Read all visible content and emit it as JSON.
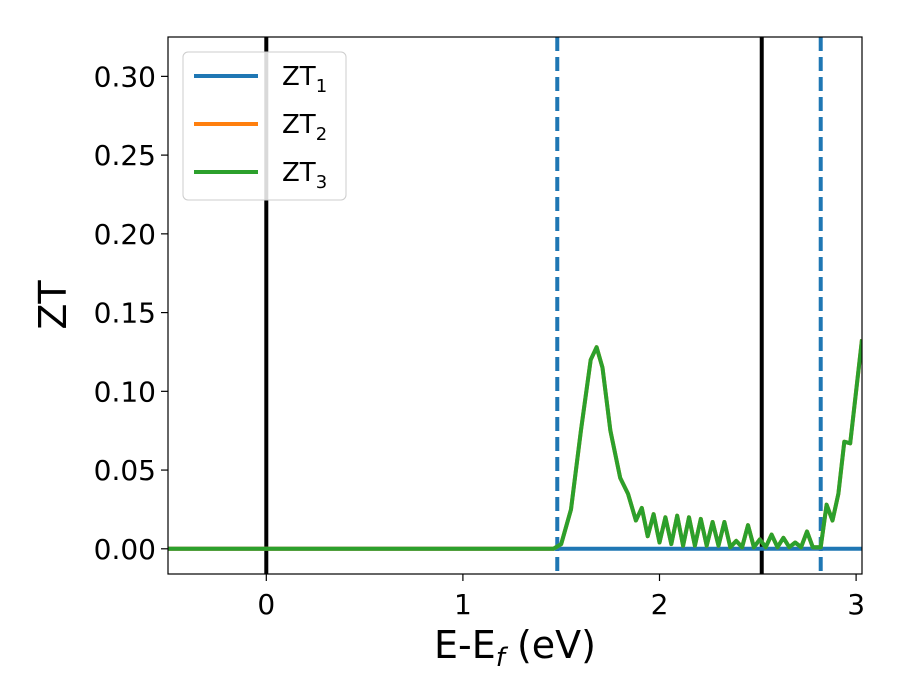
{
  "chart_data": {
    "type": "line",
    "title": "",
    "xlabel": {
      "main": "E-E",
      "sub": "f",
      "unit": " (eV)"
    },
    "ylabel": "ZT",
    "xlim": [
      -0.5,
      3.03
    ],
    "ylim": [
      -0.016,
      0.325
    ],
    "xticks": [
      0,
      1,
      2,
      3
    ],
    "yticks": [
      0.0,
      0.05,
      0.1,
      0.15,
      0.2,
      0.25,
      0.3
    ],
    "grid": false,
    "legend_position": "upper-left",
    "colors": {
      "ZT1": "#1f77b4",
      "ZT2": "#ff7f0e",
      "ZT3": "#2ca02c",
      "vline_solid": "#000000",
      "vline_dashed": "#1f77b4"
    },
    "series": [
      {
        "name": "ZT",
        "sub": "1",
        "color": "#1f77b4",
        "x": [
          -0.5,
          3.03
        ],
        "y": [
          0.0,
          0.0
        ]
      },
      {
        "name": "ZT",
        "sub": "2",
        "color": "#ff7f0e",
        "x": [
          -0.5,
          1.46,
          1.5,
          1.55,
          1.6,
          1.65,
          1.68,
          1.71,
          1.75,
          1.8,
          1.84,
          1.88,
          1.91,
          1.94,
          1.97,
          2.0,
          2.03,
          2.06,
          2.09,
          2.12,
          2.15,
          2.18,
          2.21,
          2.24,
          2.27,
          2.3,
          2.33,
          2.36,
          2.39,
          2.42,
          2.45,
          2.48,
          2.51,
          2.54,
          2.57,
          2.6,
          2.63,
          2.66,
          2.69,
          2.72,
          2.75,
          2.78,
          2.82,
          2.85,
          2.88,
          2.91,
          2.94,
          2.97,
          3.0,
          3.03
        ],
        "y": [
          0.0,
          0.0,
          0.003,
          0.025,
          0.075,
          0.12,
          0.128,
          0.115,
          0.075,
          0.045,
          0.035,
          0.018,
          0.026,
          0.008,
          0.022,
          0.004,
          0.02,
          0.003,
          0.021,
          0.002,
          0.02,
          0.002,
          0.019,
          0.002,
          0.017,
          0.002,
          0.017,
          0.001,
          0.005,
          0.001,
          0.015,
          0.001,
          0.006,
          0.001,
          0.009,
          0.001,
          0.007,
          0.001,
          0.004,
          0.001,
          0.011,
          0.001,
          0.001,
          0.028,
          0.018,
          0.035,
          0.068,
          0.067,
          0.1,
          0.133
        ]
      },
      {
        "name": "ZT",
        "sub": "3",
        "color": "#2ca02c",
        "x": [
          -0.5,
          1.46,
          1.5,
          1.55,
          1.6,
          1.65,
          1.68,
          1.71,
          1.75,
          1.8,
          1.84,
          1.88,
          1.91,
          1.94,
          1.97,
          2.0,
          2.03,
          2.06,
          2.09,
          2.12,
          2.15,
          2.18,
          2.21,
          2.24,
          2.27,
          2.3,
          2.33,
          2.36,
          2.39,
          2.42,
          2.45,
          2.48,
          2.51,
          2.54,
          2.57,
          2.6,
          2.63,
          2.66,
          2.69,
          2.72,
          2.75,
          2.78,
          2.82,
          2.85,
          2.88,
          2.91,
          2.94,
          2.97,
          3.0,
          3.03
        ],
        "y": [
          0.0,
          0.0,
          0.003,
          0.025,
          0.075,
          0.12,
          0.128,
          0.115,
          0.075,
          0.045,
          0.035,
          0.018,
          0.026,
          0.008,
          0.022,
          0.004,
          0.02,
          0.003,
          0.021,
          0.002,
          0.02,
          0.002,
          0.019,
          0.002,
          0.017,
          0.002,
          0.017,
          0.001,
          0.005,
          0.001,
          0.015,
          0.001,
          0.006,
          0.001,
          0.009,
          0.001,
          0.007,
          0.001,
          0.004,
          0.001,
          0.011,
          0.001,
          0.001,
          0.028,
          0.018,
          0.035,
          0.068,
          0.067,
          0.1,
          0.133
        ]
      }
    ],
    "vlines": [
      {
        "x": 0.0,
        "style": "solid",
        "color": "#000000"
      },
      {
        "x": 2.52,
        "style": "solid",
        "color": "#000000"
      },
      {
        "x": 1.48,
        "style": "dashed",
        "color": "#1f77b4"
      },
      {
        "x": 2.82,
        "style": "dashed",
        "color": "#1f77b4"
      }
    ]
  }
}
